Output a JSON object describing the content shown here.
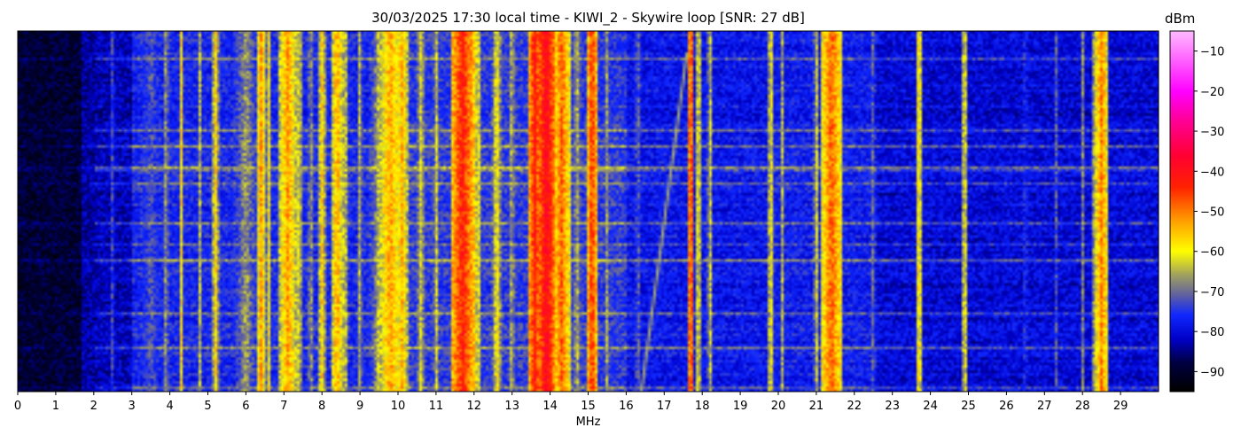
{
  "chart_data": {
    "type": "heatmap",
    "title": "30/03/2025 17:30 local time - KIWI_2 - Skywire loop [SNR: 27 dB]",
    "xlabel": "MHz",
    "ylabel": "",
    "colorbar_label": "dBm",
    "x_range": [
      0,
      30
    ],
    "x_ticks": [
      0,
      1,
      2,
      3,
      4,
      5,
      6,
      7,
      8,
      9,
      10,
      11,
      12,
      13,
      14,
      15,
      16,
      17,
      18,
      19,
      20,
      21,
      22,
      23,
      24,
      25,
      26,
      27,
      28,
      29
    ],
    "color_range": [
      -95,
      -5
    ],
    "colorbar_ticks": [
      -10,
      -20,
      -30,
      -40,
      -50,
      -60,
      -70,
      -80,
      -90
    ],
    "colormap": [
      {
        "v": -95,
        "color": "#000000"
      },
      {
        "v": -88,
        "color": "#000040"
      },
      {
        "v": -82,
        "color": "#0000c8"
      },
      {
        "v": -76,
        "color": "#1028ff"
      },
      {
        "v": -71,
        "color": "#6060a0"
      },
      {
        "v": -66,
        "color": "#a0a060"
      },
      {
        "v": -60,
        "color": "#ffff00"
      },
      {
        "v": -52,
        "color": "#ff9900"
      },
      {
        "v": -44,
        "color": "#ff2200"
      },
      {
        "v": -36,
        "color": "#ff0033"
      },
      {
        "v": -27,
        "color": "#ff0099"
      },
      {
        "v": -20,
        "color": "#ff00ff"
      },
      {
        "v": -5,
        "color": "#ffb8ff"
      }
    ],
    "bands": [
      {
        "from": 0.0,
        "to": 1.7,
        "level": -90
      },
      {
        "from": 1.7,
        "to": 3.0,
        "level": -84
      },
      {
        "from": 3.0,
        "to": 9.2,
        "level": -78
      },
      {
        "from": 9.2,
        "to": 16.0,
        "level": -76
      },
      {
        "from": 16.0,
        "to": 19.8,
        "level": -80
      },
      {
        "from": 19.8,
        "to": 22.6,
        "level": -79
      },
      {
        "from": 22.6,
        "to": 30.0,
        "level": -82
      }
    ],
    "signals": [
      {
        "f": 2.5,
        "w": 0.05,
        "level": -70
      },
      {
        "f": 3.5,
        "w": 0.3,
        "level": -72
      },
      {
        "f": 3.9,
        "w": 0.06,
        "level": -64
      },
      {
        "f": 4.3,
        "w": 0.05,
        "level": -58
      },
      {
        "f": 4.8,
        "w": 0.05,
        "level": -62
      },
      {
        "f": 5.2,
        "w": 0.07,
        "level": -56
      },
      {
        "f": 6.0,
        "w": 0.3,
        "level": -66
      },
      {
        "f": 6.4,
        "w": 0.1,
        "level": -52
      },
      {
        "f": 6.6,
        "w": 0.06,
        "level": -58
      },
      {
        "f": 7.1,
        "w": 0.2,
        "level": -52
      },
      {
        "f": 7.4,
        "w": 0.08,
        "level": -60
      },
      {
        "f": 7.7,
        "w": 0.05,
        "level": -62
      },
      {
        "f": 8.0,
        "w": 0.08,
        "level": -56
      },
      {
        "f": 8.4,
        "w": 0.12,
        "level": -52
      },
      {
        "f": 8.6,
        "w": 0.06,
        "level": -58
      },
      {
        "f": 9.0,
        "w": 0.05,
        "level": -62
      },
      {
        "f": 9.5,
        "w": 0.15,
        "level": -62
      },
      {
        "f": 9.8,
        "w": 0.25,
        "level": -52
      },
      {
        "f": 10.1,
        "w": 0.15,
        "level": -54
      },
      {
        "f": 10.6,
        "w": 0.1,
        "level": -62
      },
      {
        "f": 11.0,
        "w": 0.05,
        "level": -60
      },
      {
        "f": 11.7,
        "w": 0.25,
        "level": -42
      },
      {
        "f": 12.1,
        "w": 0.08,
        "level": -58
      },
      {
        "f": 12.6,
        "w": 0.1,
        "level": -58
      },
      {
        "f": 13.0,
        "w": 0.05,
        "level": -60
      },
      {
        "f": 13.6,
        "w": 0.15,
        "level": -42
      },
      {
        "f": 13.9,
        "w": 0.2,
        "level": -38
      },
      {
        "f": 14.3,
        "w": 0.2,
        "level": -48
      },
      {
        "f": 14.7,
        "w": 0.1,
        "level": -64
      },
      {
        "f": 15.1,
        "w": 0.12,
        "level": -44
      },
      {
        "f": 15.5,
        "w": 0.05,
        "level": -64
      },
      {
        "f": 16.3,
        "w": 0.04,
        "level": -64
      },
      {
        "f": 17.7,
        "w": 0.08,
        "level": -44
      },
      {
        "f": 17.9,
        "w": 0.05,
        "level": -56
      },
      {
        "f": 18.2,
        "w": 0.05,
        "level": -60
      },
      {
        "f": 19.8,
        "w": 0.05,
        "level": -56
      },
      {
        "f": 20.1,
        "w": 0.04,
        "level": -64
      },
      {
        "f": 21.0,
        "w": 0.05,
        "level": -60
      },
      {
        "f": 21.4,
        "w": 0.25,
        "level": -48
      },
      {
        "f": 21.6,
        "w": 0.05,
        "level": -58
      },
      {
        "f": 22.5,
        "w": 0.04,
        "level": -66
      },
      {
        "f": 23.7,
        "w": 0.06,
        "level": -54
      },
      {
        "f": 24.9,
        "w": 0.05,
        "level": -56
      },
      {
        "f": 26.5,
        "w": 0.04,
        "level": -68
      },
      {
        "f": 27.3,
        "w": 0.04,
        "level": -70
      },
      {
        "f": 28.0,
        "w": 0.04,
        "level": -66
      },
      {
        "f": 28.3,
        "w": 0.04,
        "level": -64
      },
      {
        "f": 28.5,
        "w": 0.15,
        "level": -50
      }
    ]
  }
}
